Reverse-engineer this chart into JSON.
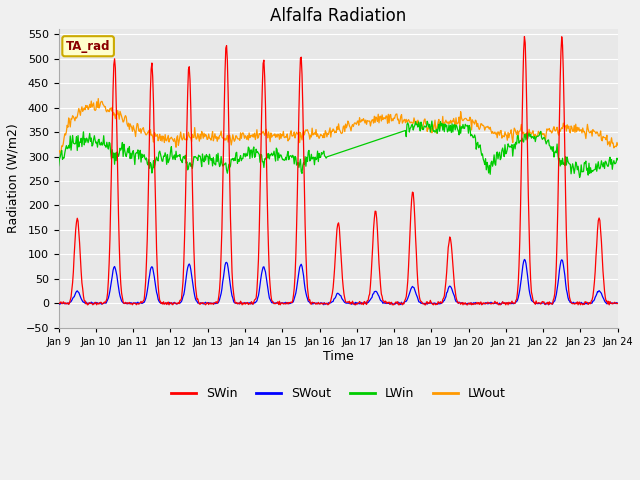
{
  "title": "Alfalfa Radiation",
  "xlabel": "Time",
  "ylabel": "Radiation (W/m2)",
  "ylim": [
    -50,
    560
  ],
  "yticks": [
    -50,
    0,
    50,
    100,
    150,
    200,
    250,
    300,
    350,
    400,
    450,
    500,
    550
  ],
  "colors": {
    "SWin": "#ff0000",
    "SWout": "#0000ff",
    "LWin": "#00cc00",
    "LWout": "#ff9900"
  },
  "legend_label": "TA_rad",
  "outer_bg": "#f0f0f0",
  "plot_bg": "#e8e8e8",
  "grid_color": "#ffffff",
  "swin_peaks": [
    175,
    500,
    490,
    485,
    530,
    500,
    505,
    165,
    190,
    230,
    135,
    0,
    545,
    545,
    175
  ],
  "swout_peaks": [
    25,
    75,
    75,
    80,
    85,
    75,
    80,
    20,
    25,
    35,
    35,
    0,
    90,
    90,
    25
  ],
  "lwout_knots_x": [
    0,
    0.3,
    0.7,
    1.0,
    1.5,
    2.0,
    2.5,
    3.0,
    3.5,
    4.0,
    4.5,
    5.0,
    5.5,
    6.0,
    6.5,
    7.0,
    7.5,
    8.0,
    8.5,
    9.0,
    9.5,
    10.0,
    10.5,
    11.0,
    11.5,
    12.0,
    12.5,
    13.0,
    13.5,
    14.0,
    14.5,
    15.0
  ],
  "lwout_knots_y": [
    300,
    370,
    400,
    405,
    390,
    360,
    345,
    335,
    340,
    340,
    335,
    340,
    345,
    340,
    345,
    345,
    355,
    370,
    375,
    380,
    370,
    360,
    370,
    375,
    355,
    345,
    350,
    345,
    360,
    355,
    345,
    320
  ],
  "lwin_knots_x": [
    0,
    0.3,
    0.7,
    1.0,
    1.5,
    2.0,
    2.5,
    3.0,
    3.5,
    4.0,
    4.5,
    5.0,
    5.5,
    6.0,
    6.5,
    7.0,
    7.5,
    8.0,
    8.5,
    9.0,
    9.5,
    10.0,
    10.5,
    11.0,
    11.5,
    12.0,
    12.5,
    13.0,
    13.5,
    14.0,
    14.5,
    15.0
  ],
  "lwin_knots_y": [
    290,
    325,
    335,
    330,
    320,
    305,
    300,
    295,
    300,
    295,
    295,
    305,
    310,
    300,
    295,
    300,
    315,
    335,
    345,
    355,
    360,
    358,
    360,
    360,
    275,
    310,
    340,
    345,
    290,
    270,
    280,
    295
  ],
  "swin_sigma": 1.8,
  "noise_seed": 42
}
